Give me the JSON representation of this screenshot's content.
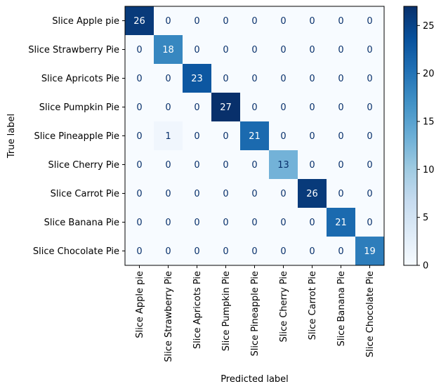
{
  "chart_data": {
    "type": "heatmap",
    "xlabel": "Predicted label",
    "ylabel": "True label",
    "labels": [
      "Slice Apple pie",
      "Slice Strawberry Pie",
      "Slice Apricots Pie",
      "Slice Pumpkin Pie",
      "Slice Pineapple Pie",
      "Slice Cherry Pie",
      "Slice Carrot Pie",
      "Slice Banana Pie",
      "Slice Chocolate Pie"
    ],
    "matrix": [
      [
        26,
        0,
        0,
        0,
        0,
        0,
        0,
        0,
        0
      ],
      [
        0,
        18,
        0,
        0,
        0,
        0,
        0,
        0,
        0
      ],
      [
        0,
        0,
        23,
        0,
        0,
        0,
        0,
        0,
        0
      ],
      [
        0,
        0,
        0,
        27,
        0,
        0,
        0,
        0,
        0
      ],
      [
        0,
        1,
        0,
        0,
        21,
        0,
        0,
        0,
        0
      ],
      [
        0,
        0,
        0,
        0,
        0,
        13,
        0,
        0,
        0
      ],
      [
        0,
        0,
        0,
        0,
        0,
        0,
        26,
        0,
        0
      ],
      [
        0,
        0,
        0,
        0,
        0,
        0,
        0,
        21,
        0
      ],
      [
        0,
        0,
        0,
        0,
        0,
        0,
        0,
        0,
        19
      ]
    ],
    "colormap": "Blues",
    "vmin": 0,
    "vmax": 27,
    "colorbar_ticks": [
      0,
      5,
      10,
      15,
      20,
      25
    ]
  }
}
